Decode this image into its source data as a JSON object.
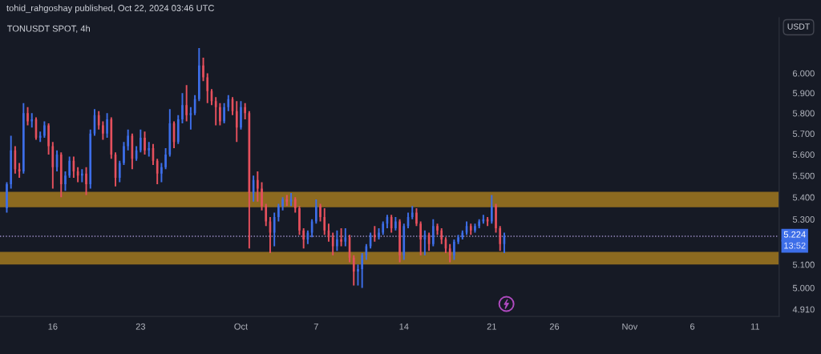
{
  "chart_data": {
    "type": "candlestick",
    "title": "TONUSDT SPOT, 4h",
    "ylabel": "USDT",
    "annotations": [
      "tohid_rahgoshay published, Oct 22, 2024 03:46 UTC",
      "13:52"
    ],
    "x": [
      "2024-09-12T08:00",
      "2024-09-12T16:00",
      "2024-09-13T00:00",
      "2024-09-13T08:00",
      "2024-09-13T16:00",
      "2024-09-14T00:00",
      "2024-09-14T08:00",
      "2024-09-14T16:00",
      "2024-09-15T00:00",
      "2024-09-15T08:00",
      "2024-09-15T16:00",
      "2024-09-16T00:00",
      "2024-09-16T08:00",
      "2024-09-16T16:00",
      "2024-09-17T00:00",
      "2024-09-17T08:00",
      "2024-09-17T16:00",
      "2024-09-18T00:00",
      "2024-09-18T08:00",
      "2024-09-18T16:00",
      "2024-09-19T00:00",
      "2024-09-19T08:00",
      "2024-09-19T16:00",
      "2024-09-20T00:00",
      "2024-09-20T08:00",
      "2024-09-20T16:00",
      "2024-09-21T00:00",
      "2024-09-21T08:00",
      "2024-09-21T16:00",
      "2024-09-22T00:00",
      "2024-09-22T08:00",
      "2024-09-22T16:00",
      "2024-09-23T00:00",
      "2024-09-23T08:00",
      "2024-09-23T16:00",
      "2024-09-24T00:00",
      "2024-09-24T08:00",
      "2024-09-24T16:00",
      "2024-09-25T00:00",
      "2024-09-25T08:00",
      "2024-09-25T16:00",
      "2024-09-26T00:00",
      "2024-09-26T08:00",
      "2024-09-26T16:00",
      "2024-09-27T00:00",
      "2024-09-27T08:00",
      "2024-09-27T16:00",
      "2024-09-28T00:00",
      "2024-09-28T08:00",
      "2024-09-28T16:00",
      "2024-09-29T00:00",
      "2024-09-29T08:00",
      "2024-09-29T16:00",
      "2024-09-30T00:00",
      "2024-09-30T08:00",
      "2024-09-30T16:00",
      "2024-10-01T00:00",
      "2024-10-01T08:00",
      "2024-10-01T16:00",
      "2024-10-02T00:00",
      "2024-10-02T08:00",
      "2024-10-02T16:00",
      "2024-10-03T00:00",
      "2024-10-03T08:00",
      "2024-10-03T16:00",
      "2024-10-04T00:00",
      "2024-10-04T08:00",
      "2024-10-04T16:00",
      "2024-10-05T00:00",
      "2024-10-05T08:00",
      "2024-10-05T16:00",
      "2024-10-06T00:00",
      "2024-10-06T08:00",
      "2024-10-06T16:00",
      "2024-10-07T00:00",
      "2024-10-07T08:00",
      "2024-10-07T16:00",
      "2024-10-08T00:00",
      "2024-10-08T08:00",
      "2024-10-08T16:00",
      "2024-10-09T00:00",
      "2024-10-09T08:00",
      "2024-10-09T16:00",
      "2024-10-10T00:00",
      "2024-10-10T08:00",
      "2024-10-10T16:00",
      "2024-10-11T00:00",
      "2024-10-11T08:00",
      "2024-10-11T16:00",
      "2024-10-12T00:00",
      "2024-10-12T08:00",
      "2024-10-12T16:00",
      "2024-10-13T00:00",
      "2024-10-13T08:00",
      "2024-10-13T16:00",
      "2024-10-14T00:00",
      "2024-10-14T08:00",
      "2024-10-14T16:00",
      "2024-10-15T00:00",
      "2024-10-15T08:00",
      "2024-10-15T16:00",
      "2024-10-16T00:00",
      "2024-10-16T08:00",
      "2024-10-16T16:00",
      "2024-10-17T00:00",
      "2024-10-17T08:00",
      "2024-10-17T16:00",
      "2024-10-18T00:00",
      "2024-10-18T08:00",
      "2024-10-18T16:00",
      "2024-10-19T00:00",
      "2024-10-19T08:00",
      "2024-10-19T16:00",
      "2024-10-20T00:00",
      "2024-10-20T08:00",
      "2024-10-20T16:00",
      "2024-10-21T00:00",
      "2024-10-21T08:00",
      "2024-10-21T16:00",
      "2024-10-22T00:00"
    ],
    "ohlc": [
      [
        5.35,
        5.47,
        5.33,
        5.46
      ],
      [
        5.46,
        5.69,
        5.44,
        5.62
      ],
      [
        5.62,
        5.64,
        5.51,
        5.53
      ],
      [
        5.53,
        5.56,
        5.49,
        5.52
      ],
      [
        5.52,
        5.85,
        5.51,
        5.8
      ],
      [
        5.8,
        5.83,
        5.74,
        5.76
      ],
      [
        5.76,
        5.8,
        5.73,
        5.77
      ],
      [
        5.77,
        5.78,
        5.67,
        5.68
      ],
      [
        5.68,
        5.71,
        5.66,
        5.69
      ],
      [
        5.69,
        5.76,
        5.68,
        5.74
      ],
      [
        5.74,
        5.75,
        5.6,
        5.64
      ],
      [
        5.64,
        5.66,
        5.44,
        5.54
      ],
      [
        5.54,
        5.62,
        5.52,
        5.6
      ],
      [
        5.6,
        5.61,
        5.4,
        5.46
      ],
      [
        5.46,
        5.52,
        5.43,
        5.5
      ],
      [
        5.5,
        5.59,
        5.49,
        5.57
      ],
      [
        5.57,
        5.59,
        5.49,
        5.52
      ],
      [
        5.52,
        5.54,
        5.47,
        5.5
      ],
      [
        5.5,
        5.53,
        5.47,
        5.51
      ],
      [
        5.51,
        5.54,
        5.41,
        5.46
      ],
      [
        5.46,
        5.72,
        5.44,
        5.7
      ],
      [
        5.7,
        5.82,
        5.69,
        5.79
      ],
      [
        5.79,
        5.81,
        5.72,
        5.74
      ],
      [
        5.74,
        5.76,
        5.67,
        5.7
      ],
      [
        5.7,
        5.8,
        5.68,
        5.77
      ],
      [
        5.77,
        5.78,
        5.58,
        5.6
      ],
      [
        5.6,
        5.61,
        5.45,
        5.49
      ],
      [
        5.49,
        5.57,
        5.47,
        5.56
      ],
      [
        5.56,
        5.66,
        5.55,
        5.64
      ],
      [
        5.64,
        5.72,
        5.62,
        5.69
      ],
      [
        5.69,
        5.7,
        5.53,
        5.58
      ],
      [
        5.58,
        5.64,
        5.57,
        5.62
      ],
      [
        5.62,
        5.72,
        5.61,
        5.68
      ],
      [
        5.68,
        5.71,
        5.6,
        5.62
      ],
      [
        5.62,
        5.66,
        5.59,
        5.63
      ],
      [
        5.63,
        5.65,
        5.55,
        5.57
      ],
      [
        5.57,
        5.58,
        5.46,
        5.51
      ],
      [
        5.51,
        5.56,
        5.47,
        5.54
      ],
      [
        5.54,
        5.63,
        5.53,
        5.6
      ],
      [
        5.6,
        5.82,
        5.59,
        5.75
      ],
      [
        5.75,
        5.76,
        5.63,
        5.66
      ],
      [
        5.66,
        5.79,
        5.65,
        5.77
      ],
      [
        5.77,
        5.9,
        5.75,
        5.84
      ],
      [
        5.84,
        5.94,
        5.76,
        5.79
      ],
      [
        5.79,
        5.83,
        5.72,
        5.8
      ],
      [
        5.8,
        5.89,
        5.79,
        5.87
      ],
      [
        5.87,
        6.13,
        5.86,
        6.04
      ],
      [
        6.04,
        6.08,
        5.96,
        5.98
      ],
      [
        5.98,
        6.0,
        5.85,
        5.91
      ],
      [
        5.91,
        5.92,
        5.84,
        5.86
      ],
      [
        5.86,
        5.88,
        5.74,
        5.83
      ],
      [
        5.83,
        5.85,
        5.74,
        5.76
      ],
      [
        5.76,
        5.85,
        5.75,
        5.83
      ],
      [
        5.83,
        5.89,
        5.81,
        5.87
      ],
      [
        5.87,
        5.88,
        5.79,
        5.81
      ],
      [
        5.81,
        5.86,
        5.66,
        5.73
      ],
      [
        5.73,
        5.86,
        5.72,
        5.83
      ],
      [
        5.83,
        5.85,
        5.77,
        5.8
      ],
      [
        5.8,
        5.81,
        5.17,
        5.42
      ],
      [
        5.42,
        5.5,
        5.38,
        5.48
      ],
      [
        5.48,
        5.52,
        5.38,
        5.44
      ],
      [
        5.44,
        5.47,
        5.34,
        5.36
      ],
      [
        5.36,
        5.37,
        5.27,
        5.29
      ],
      [
        5.29,
        5.31,
        5.15,
        5.24
      ],
      [
        5.24,
        5.33,
        5.18,
        5.31
      ],
      [
        5.31,
        5.37,
        5.29,
        5.36
      ],
      [
        5.36,
        5.4,
        5.34,
        5.39
      ],
      [
        5.39,
        5.41,
        5.36,
        5.38
      ],
      [
        5.38,
        5.42,
        5.36,
        5.39
      ],
      [
        5.39,
        5.4,
        5.33,
        5.35
      ],
      [
        5.35,
        5.36,
        5.23,
        5.25
      ],
      [
        5.25,
        5.26,
        5.17,
        5.21
      ],
      [
        5.21,
        5.25,
        5.19,
        5.24
      ],
      [
        5.24,
        5.3,
        5.22,
        5.29
      ],
      [
        5.29,
        5.39,
        5.28,
        5.36
      ],
      [
        5.36,
        5.37,
        5.29,
        5.31
      ],
      [
        5.31,
        5.35,
        5.23,
        5.25
      ],
      [
        5.25,
        5.28,
        5.2,
        5.22
      ],
      [
        5.22,
        5.24,
        5.14,
        5.18
      ],
      [
        5.18,
        5.25,
        5.16,
        5.21
      ],
      [
        5.21,
        5.26,
        5.18,
        5.2
      ],
      [
        5.2,
        5.26,
        5.18,
        5.22
      ],
      [
        5.22,
        5.23,
        5.11,
        5.13
      ],
      [
        5.13,
        5.14,
        5.01,
        5.07
      ],
      [
        5.07,
        5.1,
        5.01,
        5.08
      ],
      [
        5.08,
        5.15,
        5.0,
        5.14
      ],
      [
        5.14,
        5.19,
        5.12,
        5.18
      ],
      [
        5.18,
        5.24,
        5.17,
        5.23
      ],
      [
        5.23,
        5.27,
        5.2,
        5.22
      ],
      [
        5.22,
        5.26,
        5.21,
        5.24
      ],
      [
        5.24,
        5.29,
        5.23,
        5.28
      ],
      [
        5.28,
        5.32,
        5.26,
        5.31
      ],
      [
        5.31,
        5.32,
        5.24,
        5.26
      ],
      [
        5.26,
        5.31,
        5.25,
        5.29
      ],
      [
        5.29,
        5.3,
        5.11,
        5.14
      ],
      [
        5.14,
        5.28,
        5.12,
        5.27
      ],
      [
        5.27,
        5.33,
        5.26,
        5.31
      ],
      [
        5.31,
        5.36,
        5.3,
        5.33
      ],
      [
        5.33,
        5.35,
        5.27,
        5.28
      ],
      [
        5.28,
        5.29,
        5.14,
        5.21
      ],
      [
        5.21,
        5.25,
        5.14,
        5.23
      ],
      [
        5.23,
        5.24,
        5.16,
        5.19
      ],
      [
        5.19,
        5.3,
        5.18,
        5.27
      ],
      [
        5.27,
        5.28,
        5.23,
        5.25
      ],
      [
        5.25,
        5.26,
        5.19,
        5.21
      ],
      [
        5.21,
        5.22,
        5.15,
        5.17
      ],
      [
        5.17,
        5.19,
        5.11,
        5.14
      ],
      [
        5.14,
        5.21,
        5.12,
        5.2
      ],
      [
        5.2,
        5.23,
        5.19,
        5.22
      ],
      [
        5.22,
        5.25,
        5.21,
        5.24
      ],
      [
        5.24,
        5.29,
        5.23,
        5.27
      ],
      [
        5.27,
        5.28,
        5.23,
        5.25
      ],
      [
        5.25,
        5.28,
        5.24,
        5.27
      ],
      [
        5.27,
        5.3,
        5.26,
        5.29
      ],
      [
        5.29,
        5.32,
        5.28,
        5.3
      ],
      [
        5.3,
        5.31,
        5.27,
        5.29
      ],
      [
        5.29,
        5.41,
        5.28,
        5.36
      ],
      [
        5.36,
        5.37,
        5.24,
        5.26
      ],
      [
        5.26,
        5.27,
        5.16,
        5.19
      ],
      [
        5.19,
        5.24,
        5.15,
        5.224
      ]
    ],
    "colors": [
      "#3d6ee8",
      "#3d6ee8",
      "#e5505d",
      "#e5505d",
      "#3d6ee8",
      "#e5505d",
      "#3d6ee8",
      "#e5505d",
      "#3d6ee8",
      "#3d6ee8",
      "#e5505d",
      "#e5505d",
      "#3d6ee8",
      "#e5505d",
      "#3d6ee8",
      "#3d6ee8",
      "#e5505d",
      "#e5505d",
      "#3d6ee8",
      "#e5505d",
      "#3d6ee8",
      "#3d6ee8",
      "#e5505d",
      "#e5505d",
      "#3d6ee8",
      "#e5505d",
      "#e5505d",
      "#3d6ee8",
      "#3d6ee8",
      "#3d6ee8",
      "#e5505d",
      "#3d6ee8",
      "#3d6ee8",
      "#e5505d",
      "#3d6ee8",
      "#e5505d",
      "#e5505d",
      "#3d6ee8",
      "#3d6ee8",
      "#3d6ee8",
      "#e5505d",
      "#3d6ee8",
      "#3d6ee8",
      "#e5505d",
      "#3d6ee8",
      "#3d6ee8",
      "#3d6ee8",
      "#e5505d",
      "#e5505d",
      "#e5505d",
      "#e5505d",
      "#e5505d",
      "#3d6ee8",
      "#3d6ee8",
      "#e5505d",
      "#e5505d",
      "#3d6ee8",
      "#e5505d",
      "#e5505d",
      "#3d6ee8",
      "#e5505d",
      "#e5505d",
      "#e5505d",
      "#e5505d",
      "#3d6ee8",
      "#3d6ee8",
      "#3d6ee8",
      "#e5505d",
      "#3d6ee8",
      "#e5505d",
      "#e5505d",
      "#e5505d",
      "#3d6ee8",
      "#3d6ee8",
      "#3d6ee8",
      "#e5505d",
      "#e5505d",
      "#e5505d",
      "#e5505d",
      "#3d6ee8",
      "#e5505d",
      "#3d6ee8",
      "#e5505d",
      "#e5505d",
      "#3d6ee8",
      "#3d6ee8",
      "#3d6ee8",
      "#3d6ee8",
      "#e5505d",
      "#3d6ee8",
      "#3d6ee8",
      "#3d6ee8",
      "#e5505d",
      "#3d6ee8",
      "#e5505d",
      "#3d6ee8",
      "#3d6ee8",
      "#3d6ee8",
      "#e5505d",
      "#e5505d",
      "#3d6ee8",
      "#e5505d",
      "#3d6ee8",
      "#e5505d",
      "#e5505d",
      "#e5505d",
      "#e5505d",
      "#3d6ee8",
      "#3d6ee8",
      "#3d6ee8",
      "#3d6ee8",
      "#e5505d",
      "#3d6ee8",
      "#3d6ee8",
      "#3d6ee8",
      "#e5505d",
      "#3d6ee8",
      "#e5505d",
      "#e5505d",
      "#3d6ee8"
    ],
    "xlim": [
      "2024-09-11T19:00",
      "2024-11-12T22:00"
    ],
    "xticks": [
      {
        "value": "2024-09-16",
        "label": "16"
      },
      {
        "value": "2024-09-23",
        "label": "23"
      },
      {
        "value": "2024-10-01",
        "label": "Oct"
      },
      {
        "value": "2024-10-07",
        "label": "7"
      },
      {
        "value": "2024-10-14",
        "label": "14"
      },
      {
        "value": "2024-10-21",
        "label": "21"
      },
      {
        "value": "2024-10-26",
        "label": "26"
      },
      {
        "value": "2024-11-01",
        "label": "Nov"
      },
      {
        "value": "2024-11-06",
        "label": "6"
      },
      {
        "value": "2024-11-11",
        "label": "11"
      }
    ],
    "log": true,
    "ylim": [
      4.88,
      6.29
    ],
    "yticks": [
      {
        "value": 4.91,
        "label": "4.910"
      },
      {
        "value": 5.0,
        "label": "5.000"
      },
      {
        "value": 5.1,
        "label": "5.100"
      },
      {
        "value": 5.3,
        "label": "5.300"
      },
      {
        "value": 5.4,
        "label": "5.400"
      },
      {
        "value": 5.5,
        "label": "5.500"
      },
      {
        "value": 5.6,
        "label": "5.600"
      },
      {
        "value": 5.7,
        "label": "5.700"
      },
      {
        "value": 5.8,
        "label": "5.800"
      },
      {
        "value": 5.9,
        "label": "5.900"
      },
      {
        "value": 6.0,
        "label": "6.000"
      }
    ],
    "ref_lines": [
      {
        "axis": "y",
        "value": 5.224,
        "label": "5.224",
        "color": "#9e8fc9",
        "line_style": "dotted"
      }
    ],
    "bands": [
      {
        "axis": "y",
        "from": 5.355,
        "to": 5.425,
        "color": "#8c6a20"
      },
      {
        "axis": "y",
        "from": 5.1,
        "to": 5.155,
        "color": "#8c6a20"
      }
    ]
  }
}
